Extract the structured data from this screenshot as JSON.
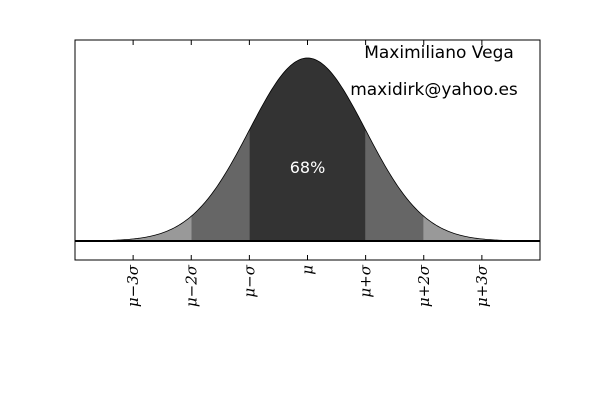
{
  "chart_data": {
    "type": "area",
    "distribution": "normal",
    "xlim": [
      -4,
      4
    ],
    "x_ticks": [
      -3,
      -2,
      -1,
      0,
      1,
      2,
      3
    ],
    "tick_labels": [
      "μ−3σ",
      "μ−2σ",
      "μ−σ",
      "μ",
      "μ+σ",
      "μ+2σ",
      "μ+3σ"
    ],
    "bands": [
      {
        "from": -4,
        "to": -3,
        "color": "#bfbfbf"
      },
      {
        "from": -3,
        "to": -2,
        "color": "#999999"
      },
      {
        "from": -2,
        "to": -1,
        "color": "#666666"
      },
      {
        "from": -1,
        "to": 1,
        "color": "#333333"
      },
      {
        "from": 1,
        "to": 2,
        "color": "#666666"
      },
      {
        "from": 2,
        "to": 3,
        "color": "#999999"
      },
      {
        "from": 3,
        "to": 4,
        "color": "#bfbfbf"
      }
    ],
    "center_label": "68%",
    "annotations": [
      "Maximiliano Vega",
      "maxidirk@yahoo.es"
    ],
    "grid": false
  }
}
